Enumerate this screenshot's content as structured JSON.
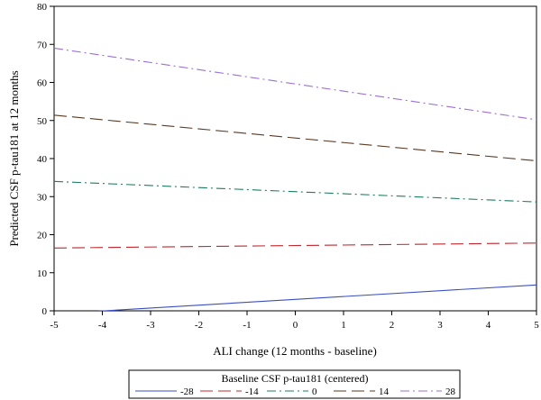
{
  "chart_data": {
    "type": "line",
    "xlabel": "ALI change (12 months - baseline)",
    "ylabel": "Predicted CSF p-tau181 at 12 months",
    "xlim": [
      -5,
      5
    ],
    "ylim": [
      0,
      80
    ],
    "x_ticks": [
      "-5",
      "-4",
      "-3",
      "-2",
      "-1",
      "0",
      "1",
      "2",
      "3",
      "4",
      "5"
    ],
    "y_ticks": [
      "0",
      "10",
      "20",
      "30",
      "40",
      "50",
      "60",
      "70",
      "80"
    ],
    "grid": false,
    "legend": {
      "title": "Baseline CSF p-tau181 (centered)",
      "position": "bottom"
    },
    "series": [
      {
        "name": "-28",
        "x": [
          -5,
          5
        ],
        "y": [
          -0.8,
          6.8
        ],
        "color": "#3a4fc4",
        "dash": "solid"
      },
      {
        "name": "-14",
        "x": [
          -5,
          5
        ],
        "y": [
          16.5,
          17.8
        ],
        "color": "#c0282d",
        "dash": "long-dash"
      },
      {
        "name": "0",
        "x": [
          -5,
          5
        ],
        "y": [
          34.0,
          28.6
        ],
        "color": "#1e7d64",
        "dash": "dash-dot"
      },
      {
        "name": "14",
        "x": [
          -5,
          5
        ],
        "y": [
          51.4,
          39.4
        ],
        "color": "#5a3a22",
        "dash": "long-dash"
      },
      {
        "name": "28",
        "x": [
          -5,
          5
        ],
        "y": [
          69.0,
          50.2
        ],
        "color": "#9b6fd6",
        "dash": "dash-dot"
      }
    ]
  }
}
